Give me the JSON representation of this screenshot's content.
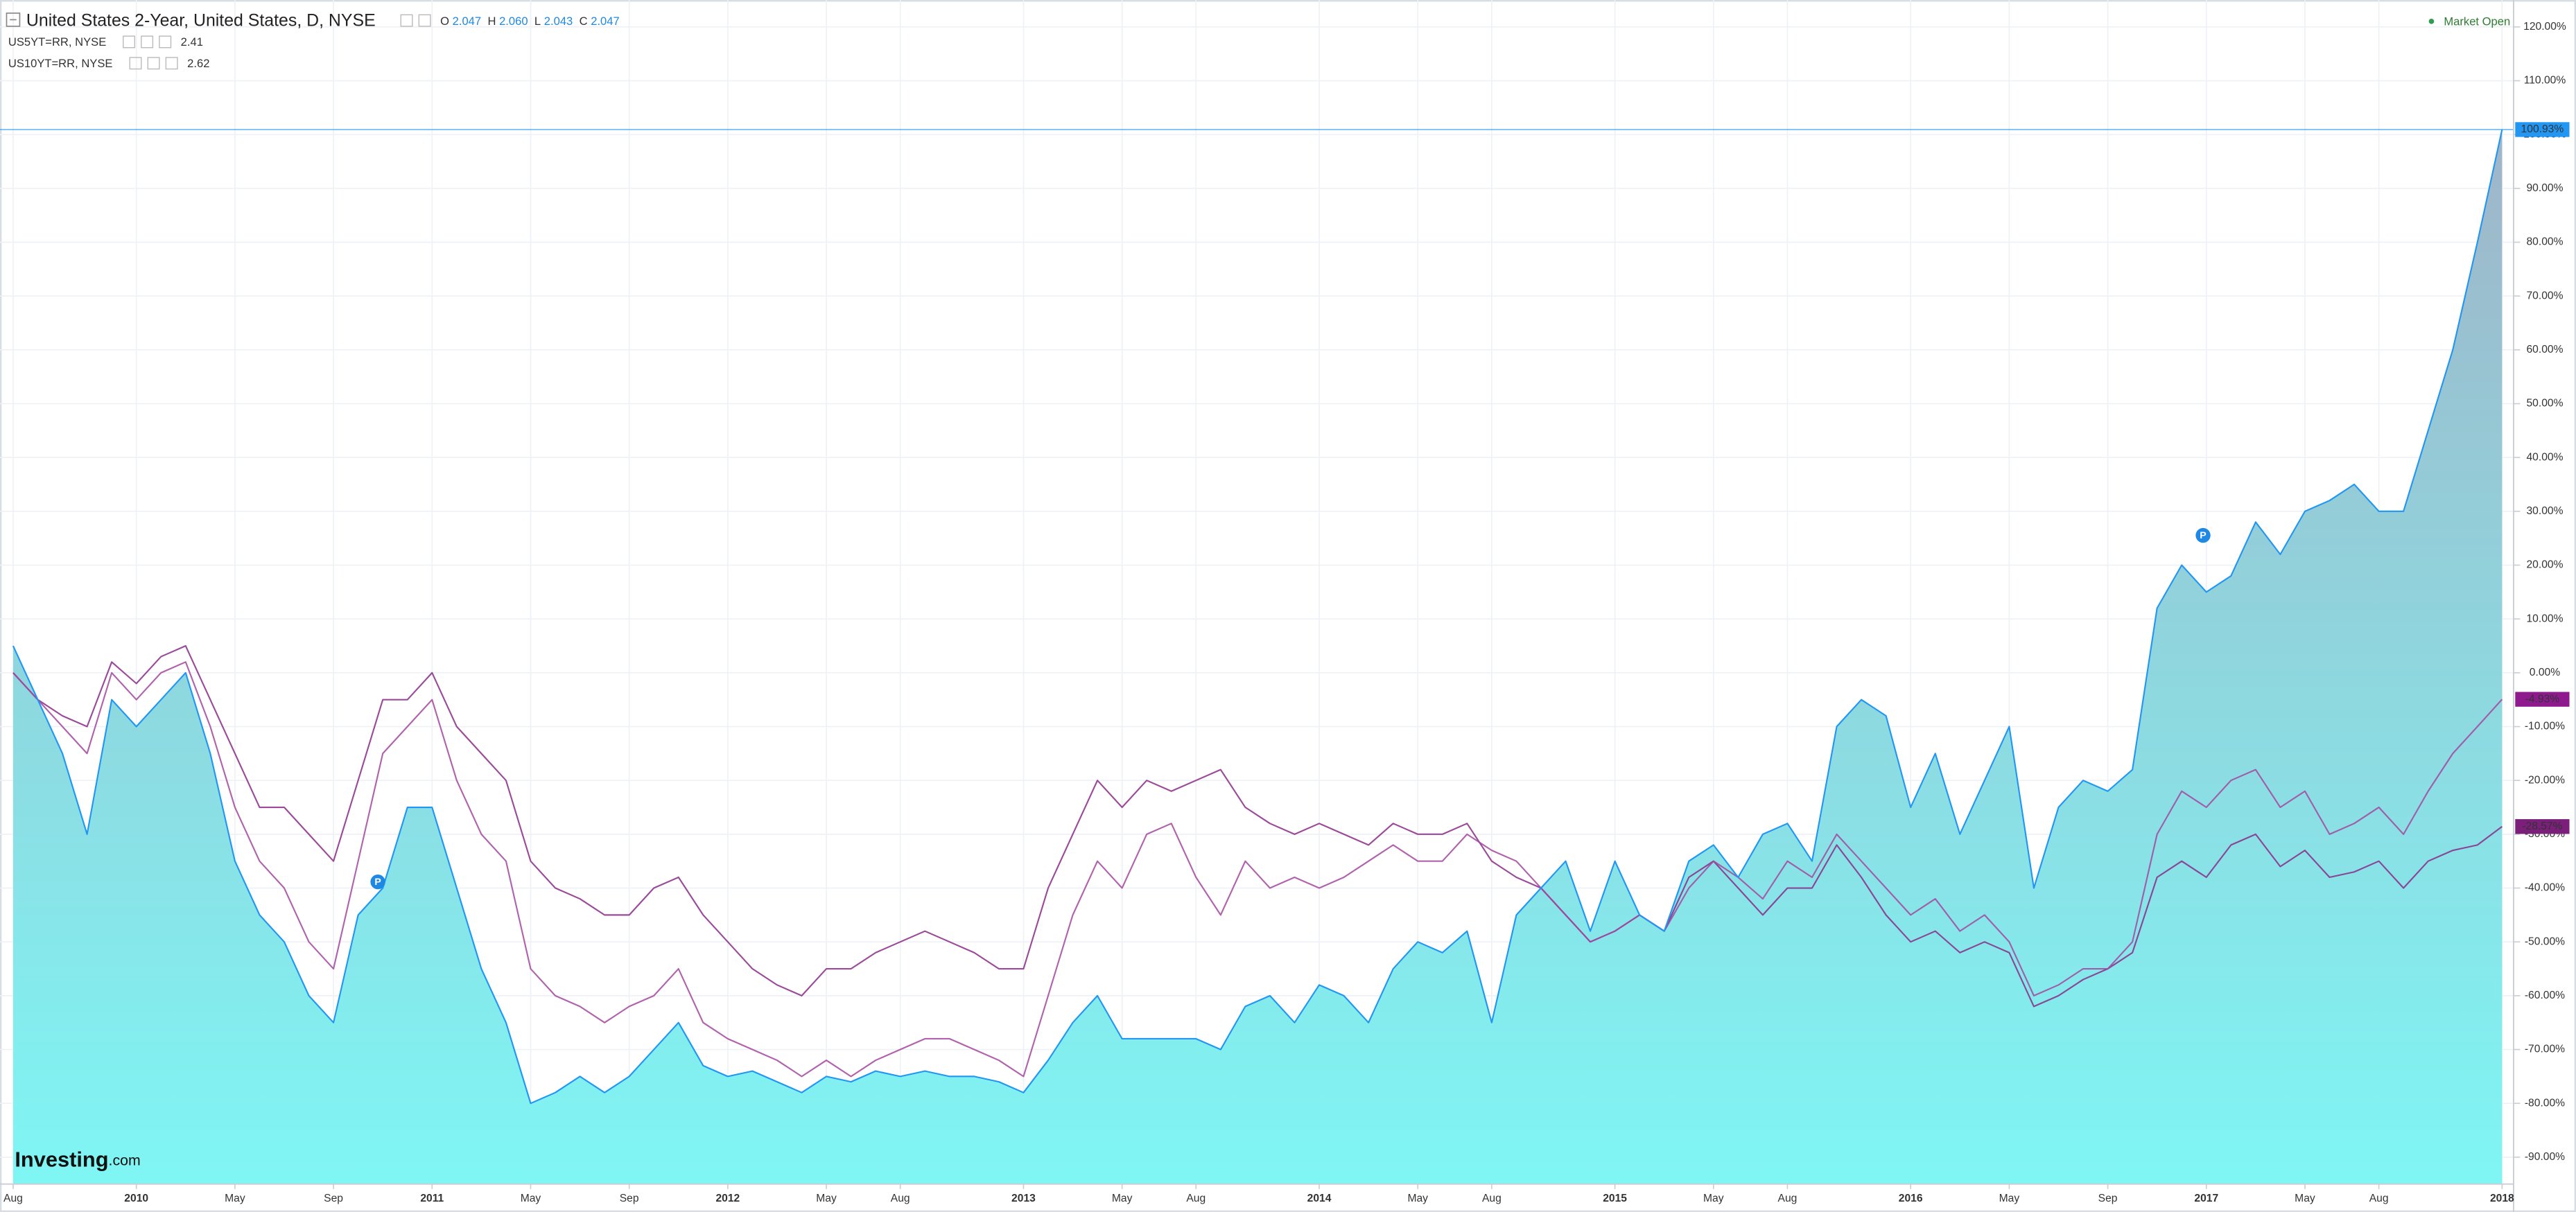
{
  "chart_data": {
    "type": "line",
    "status": "Market Open",
    "logo": "Investing",
    "logo_suffix": ".com",
    "annotations": [
      "P",
      "P"
    ],
    "categories": [
      "Aug",
      null,
      null,
      null,
      null,
      "2010",
      null,
      null,
      null,
      "May",
      null,
      null,
      null,
      "Sep",
      null,
      null,
      null,
      "2011",
      null,
      null,
      null,
      "May",
      null,
      null,
      null,
      "Sep",
      null,
      null,
      null,
      "2012",
      null,
      null,
      null,
      "May",
      null,
      null,
      "Aug",
      null,
      null,
      null,
      null,
      "2013",
      null,
      null,
      null,
      "May",
      null,
      null,
      "Aug",
      null,
      null,
      null,
      null,
      "2014",
      null,
      null,
      null,
      "May",
      null,
      null,
      "Aug",
      null,
      null,
      null,
      null,
      "2015",
      null,
      null,
      null,
      "May",
      null,
      null,
      "Aug",
      null,
      null,
      null,
      null,
      "2016",
      null,
      null,
      null,
      "May",
      null,
      null,
      null,
      "Sep",
      null,
      null,
      null,
      "2017",
      null,
      null,
      null,
      "May",
      null,
      null,
      "Aug",
      null,
      null,
      null,
      null,
      "2018"
    ],
    "series": [
      {
        "name": "United States 2-Year, United States, D, NYSE",
        "color": "#2196f3",
        "fill_colors": [
          "#9fb5c8",
          "#7ff6f4"
        ],
        "ohlc": [
          {
            "label": "O",
            "value": "2.047"
          },
          {
            "label": "H",
            "value": "2.060"
          },
          {
            "label": "L",
            "value": "2.043"
          },
          {
            "label": "C",
            "value": "2.047"
          }
        ],
        "last_label": "100.93%",
        "values": [
          5,
          -5,
          -15,
          -30,
          -5,
          -10,
          -5,
          0,
          -15,
          -35,
          -45,
          -50,
          -60,
          -65,
          -45,
          -40,
          -25,
          -25,
          -40,
          -55,
          -65,
          -80,
          -78,
          -75,
          -78,
          -75,
          -70,
          -65,
          -73,
          -75,
          -74,
          -76,
          -78,
          -75,
          -76,
          -74,
          -75,
          -74,
          -75,
          -75,
          -76,
          -78,
          -72,
          -65,
          -60,
          -68,
          -68,
          -68,
          -68,
          -70,
          -62,
          -60,
          -65,
          -58,
          -60,
          -65,
          -55,
          -50,
          -52,
          -48,
          -65,
          -45,
          -40,
          -35,
          -48,
          -35,
          -45,
          -48,
          -35,
          -32,
          -38,
          -30,
          -28,
          -35,
          -10,
          -5,
          -8,
          -25,
          -15,
          -30,
          -20,
          -10,
          -40,
          -25,
          -20,
          -22,
          -18,
          12,
          20,
          15,
          18,
          28,
          22,
          30,
          32,
          35,
          30,
          30,
          45,
          60,
          80,
          100.93
        ]
      },
      {
        "name": "US5YT=RR, NYSE",
        "color": "#a3479f",
        "price": 2.41,
        "last_label": "-4.93%",
        "values": [
          0,
          -5,
          -10,
          -15,
          0,
          -5,
          0,
          2,
          -10,
          -25,
          -35,
          -40,
          -50,
          -55,
          -35,
          -15,
          -10,
          -5,
          -20,
          -30,
          -35,
          -55,
          -60,
          -62,
          -65,
          -62,
          -60,
          -55,
          -65,
          -68,
          -70,
          -72,
          -75,
          -72,
          -75,
          -72,
          -70,
          -68,
          -68,
          -70,
          -72,
          -75,
          -60,
          -45,
          -35,
          -40,
          -30,
          -28,
          -38,
          -45,
          -35,
          -40,
          -38,
          -40,
          -38,
          -35,
          -32,
          -35,
          -35,
          -30,
          -33,
          -35,
          -40,
          -45,
          -50,
          -48,
          -45,
          -48,
          -40,
          -35,
          -38,
          -42,
          -35,
          -38,
          -30,
          -35,
          -40,
          -45,
          -42,
          -48,
          -45,
          -50,
          -60,
          -58,
          -55,
          -55,
          -50,
          -30,
          -22,
          -25,
          -20,
          -18,
          -25,
          -22,
          -30,
          -28,
          -25,
          -30,
          -22,
          -15,
          -10,
          -4.93
        ]
      },
      {
        "name": "US10YT=RR, NYSE",
        "color": "#8a2a88",
        "price": 2.62,
        "last_label": "-28.57%",
        "values": [
          0,
          -5,
          -8,
          -10,
          2,
          -2,
          3,
          5,
          -5,
          -15,
          -25,
          -25,
          -30,
          -35,
          -20,
          -5,
          -5,
          0,
          -10,
          -15,
          -20,
          -35,
          -40,
          -42,
          -45,
          -45,
          -40,
          -38,
          -45,
          -50,
          -55,
          -58,
          -60,
          -55,
          -55,
          -52,
          -50,
          -48,
          -50,
          -52,
          -55,
          -55,
          -40,
          -30,
          -20,
          -25,
          -20,
          -22,
          -20,
          -18,
          -25,
          -28,
          -30,
          -28,
          -30,
          -32,
          -28,
          -30,
          -30,
          -28,
          -35,
          -38,
          -40,
          -45,
          -50,
          -48,
          -45,
          -48,
          -38,
          -35,
          -40,
          -45,
          -40,
          -40,
          -32,
          -38,
          -45,
          -50,
          -48,
          -52,
          -50,
          -52,
          -62,
          -60,
          -57,
          -55,
          -52,
          -38,
          -35,
          -38,
          -32,
          -30,
          -36,
          -33,
          -38,
          -37,
          -35,
          -40,
          -35,
          -33,
          -32,
          -28.57
        ]
      }
    ],
    "ylim": [
      -95,
      125
    ],
    "yticks": [
      {
        "value": -90,
        "label": "-90.00%"
      },
      {
        "value": -80,
        "label": "-80.00%"
      },
      {
        "value": -70,
        "label": "-70.00%"
      },
      {
        "value": -60,
        "label": "-60.00%"
      },
      {
        "value": -50,
        "label": "-50.00%"
      },
      {
        "value": -40,
        "label": "-40.00%"
      },
      {
        "value": -30,
        "label": "-30.00%"
      },
      {
        "value": -20,
        "label": "-20.00%"
      },
      {
        "value": -10,
        "label": "-10.00%"
      },
      {
        "value": 0,
        "label": "0.00%"
      },
      {
        "value": 10,
        "label": "10.00%"
      },
      {
        "value": 20,
        "label": "20.00%"
      },
      {
        "value": 30,
        "label": "30.00%"
      },
      {
        "value": 40,
        "label": "40.00%"
      },
      {
        "value": 50,
        "label": "50.00%"
      },
      {
        "value": 60,
        "label": "60.00%"
      },
      {
        "value": 70,
        "label": "70.00%"
      },
      {
        "value": 80,
        "label": "80.00%"
      },
      {
        "value": 90,
        "label": "90.00%"
      },
      {
        "value": 100,
        "label": "100.00%"
      },
      {
        "value": 110,
        "label": "110.00%"
      },
      {
        "value": 120,
        "label": "120.00%"
      }
    ],
    "grid": true
  }
}
